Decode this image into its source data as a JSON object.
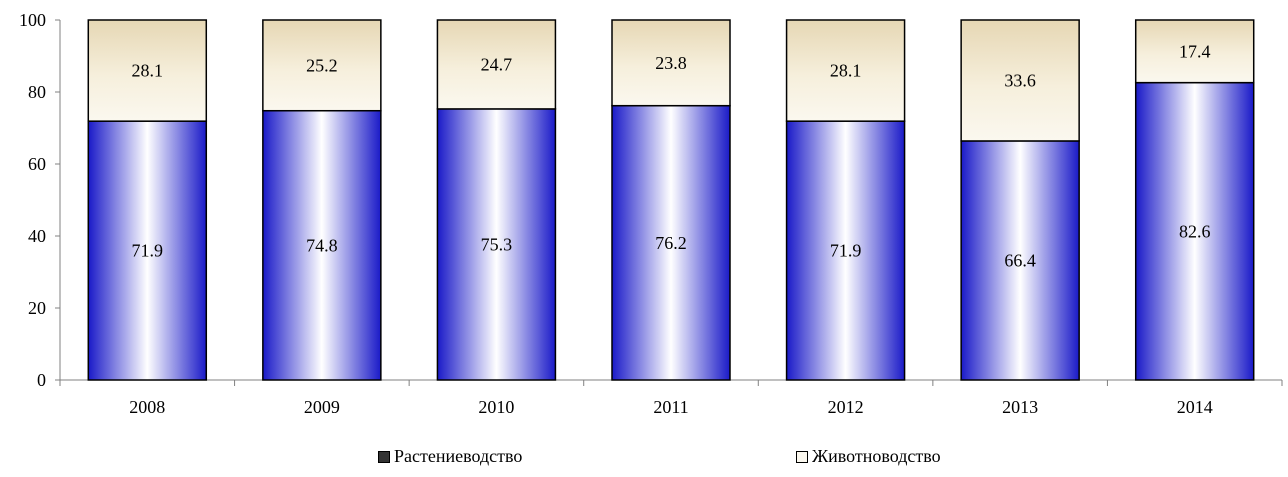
{
  "chart_data": {
    "type": "bar",
    "stacked": true,
    "categories": [
      "2008",
      "2009",
      "2010",
      "2011",
      "2012",
      "2013",
      "2014"
    ],
    "series": [
      {
        "name": "Растениеводство",
        "values": [
          71.9,
          74.8,
          75.3,
          76.2,
          71.9,
          66.4,
          82.6
        ],
        "color": "#1c1ccf"
      },
      {
        "name": "Животноводство",
        "values": [
          28.1,
          25.2,
          24.7,
          23.8,
          28.1,
          33.6,
          17.4
        ],
        "color": "#efe3c6"
      }
    ],
    "ylim": [
      0,
      100
    ],
    "yticks": [
      0,
      20,
      40,
      60,
      80,
      100
    ],
    "grid": false,
    "legend_position": "bottom",
    "title": "",
    "xlabel": "",
    "ylabel": ""
  }
}
